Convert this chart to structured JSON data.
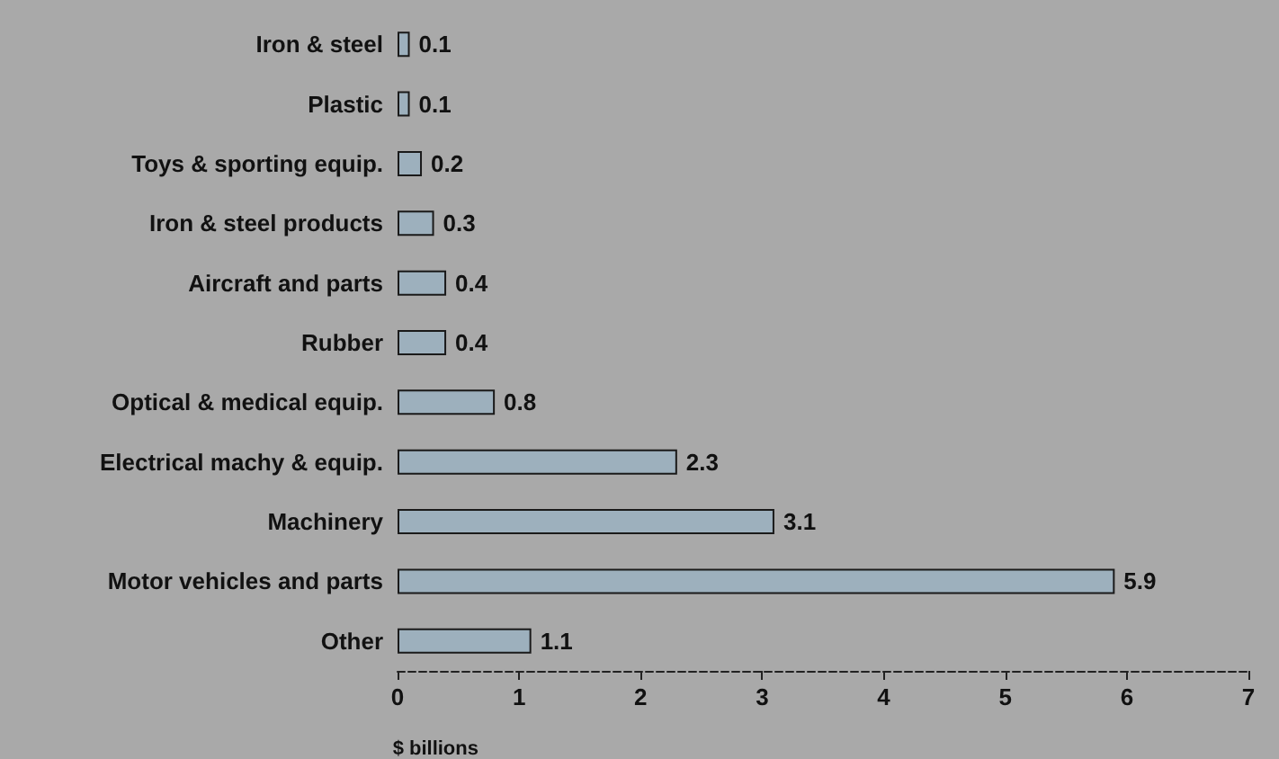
{
  "chart_data": {
    "type": "bar",
    "orientation": "horizontal",
    "xlabel": "$ billions",
    "categories": [
      "Iron & steel",
      "Plastic",
      "Toys & sporting equip.",
      "Iron & steel products",
      "Aircraft and parts",
      "Rubber",
      "Optical & medical equip.",
      "Electrical machy & equip.",
      "Machinery",
      "Motor vehicles and parts",
      "Other"
    ],
    "values": [
      0.1,
      0.1,
      0.2,
      0.3,
      0.4,
      0.4,
      0.8,
      2.3,
      3.1,
      5.9,
      1.1
    ],
    "color": "#9db0bd",
    "xlim": [
      0,
      7
    ],
    "xticks": [
      0,
      1,
      2,
      3,
      4,
      5,
      6,
      7
    ],
    "data_labels": true
  }
}
